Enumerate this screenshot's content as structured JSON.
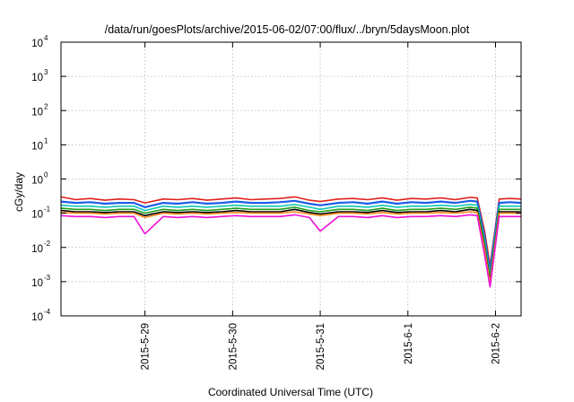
{
  "chart_data": {
    "type": "line",
    "title": "/data/run/goesPlots/archive/2015-06-02/07:00/flux/../bryn/5daysMoon.plot",
    "xlabel": "Coordinated Universal Time (UTC)",
    "ylabel": "cGy/day",
    "yscale": "log",
    "ylim": [
      0.0001,
      10000
    ],
    "y_ticks": [
      {
        "base": "10",
        "exp": "-4",
        "value": 0.0001
      },
      {
        "base": "10",
        "exp": "-3",
        "value": 0.001
      },
      {
        "base": "10",
        "exp": "-2",
        "value": 0.01
      },
      {
        "base": "10",
        "exp": "-1",
        "value": 0.1
      },
      {
        "base": "10",
        "exp": "0",
        "value": 1
      },
      {
        "base": "10",
        "exp": "1",
        "value": 10
      },
      {
        "base": "10",
        "exp": "2",
        "value": 100
      },
      {
        "base": "10",
        "exp": "3",
        "value": 1000
      },
      {
        "base": "10",
        "exp": "4",
        "value": 10000
      }
    ],
    "xlim": [
      "2015-05-28T01:00",
      "2015-06-02T07:00"
    ],
    "x_ticks": [
      {
        "label": "2015-5-29",
        "value": "2015-05-29T00:00"
      },
      {
        "label": "2015-5-30",
        "value": "2015-05-30T00:00"
      },
      {
        "label": "2015-5-31",
        "value": "2015-05-31T00:00"
      },
      {
        "label": "2015-6-1",
        "value": "2015-06-01T00:00"
      },
      {
        "label": "2015-6-2",
        "value": "2015-06-02T00:00"
      }
    ],
    "grid": true,
    "legend": "none",
    "x": [
      "2015-05-28T01:00",
      "2015-05-28T05:00",
      "2015-05-28T09:00",
      "2015-05-28T13:00",
      "2015-05-28T17:00",
      "2015-05-28T21:00",
      "2015-05-29T00:00",
      "2015-05-29T05:00",
      "2015-05-29T09:00",
      "2015-05-29T13:00",
      "2015-05-29T17:00",
      "2015-05-29T21:00",
      "2015-05-30T01:00",
      "2015-05-30T05:00",
      "2015-05-30T09:00",
      "2015-05-30T13:00",
      "2015-05-30T17:00",
      "2015-05-30T21:00",
      "2015-05-31T00:00",
      "2015-05-31T05:00",
      "2015-05-31T09:00",
      "2015-05-31T13:00",
      "2015-05-31T17:00",
      "2015-05-31T21:00",
      "2015-06-01T01:00",
      "2015-06-01T05:00",
      "2015-06-01T09:00",
      "2015-06-01T13:00",
      "2015-06-01T17:00",
      "2015-06-01T19:00",
      "2015-06-01T21:00",
      "2015-06-01T22:30",
      "2015-06-02T01:00",
      "2015-06-02T04:00",
      "2015-06-02T07:00"
    ],
    "series": [
      {
        "color": "#e0201c",
        "values": [
          0.3,
          0.25,
          0.27,
          0.24,
          0.26,
          0.25,
          0.2,
          0.26,
          0.25,
          0.27,
          0.24,
          0.26,
          0.28,
          0.25,
          0.26,
          0.27,
          0.3,
          0.24,
          0.22,
          0.26,
          0.27,
          0.25,
          0.28,
          0.24,
          0.27,
          0.26,
          0.28,
          0.25,
          0.29,
          0.28,
          0.03,
          0.003,
          0.26,
          0.27,
          0.26
        ]
      },
      {
        "color": "#1e5de8",
        "values": [
          0.22,
          0.2,
          0.21,
          0.19,
          0.2,
          0.2,
          0.15,
          0.2,
          0.19,
          0.21,
          0.19,
          0.2,
          0.22,
          0.2,
          0.2,
          0.21,
          0.23,
          0.19,
          0.17,
          0.2,
          0.21,
          0.19,
          0.22,
          0.19,
          0.21,
          0.2,
          0.22,
          0.2,
          0.23,
          0.22,
          0.02,
          0.002,
          0.2,
          0.21,
          0.2
        ]
      },
      {
        "color": "#10c8b0",
        "values": [
          0.17,
          0.16,
          0.16,
          0.15,
          0.16,
          0.16,
          0.12,
          0.16,
          0.15,
          0.16,
          0.15,
          0.16,
          0.17,
          0.16,
          0.16,
          0.16,
          0.18,
          0.15,
          0.13,
          0.16,
          0.16,
          0.15,
          0.17,
          0.15,
          0.16,
          0.16,
          0.17,
          0.16,
          0.18,
          0.17,
          0.015,
          0.0015,
          0.16,
          0.16,
          0.16
        ]
      },
      {
        "color": "#20a020",
        "values": [
          0.14,
          0.13,
          0.13,
          0.12,
          0.13,
          0.13,
          0.1,
          0.13,
          0.12,
          0.13,
          0.12,
          0.13,
          0.14,
          0.13,
          0.13,
          0.13,
          0.15,
          0.12,
          0.11,
          0.13,
          0.13,
          0.12,
          0.14,
          0.12,
          0.13,
          0.13,
          0.14,
          0.13,
          0.15,
          0.14,
          0.012,
          0.0012,
          0.13,
          0.13,
          0.13
        ]
      },
      {
        "color": "#000000",
        "values": [
          0.12,
          0.11,
          0.11,
          0.105,
          0.11,
          0.11,
          0.085,
          0.11,
          0.105,
          0.11,
          0.105,
          0.11,
          0.12,
          0.11,
          0.11,
          0.11,
          0.13,
          0.105,
          0.095,
          0.11,
          0.11,
          0.105,
          0.12,
          0.105,
          0.11,
          0.11,
          0.12,
          0.11,
          0.13,
          0.12,
          0.01,
          0.001,
          0.11,
          0.11,
          0.11
        ]
      },
      {
        "color": "#ff8a1c",
        "values": [
          0.105,
          0.1,
          0.1,
          0.095,
          0.1,
          0.1,
          0.075,
          0.1,
          0.095,
          0.1,
          0.095,
          0.1,
          0.105,
          0.1,
          0.1,
          0.1,
          0.11,
          0.095,
          0.085,
          0.1,
          0.1,
          0.095,
          0.105,
          0.095,
          0.1,
          0.1,
          0.105,
          0.1,
          0.11,
          0.105,
          0.009,
          0.0009,
          0.1,
          0.1,
          0.1
        ]
      },
      {
        "color": "#ee10d8",
        "values": [
          0.085,
          0.08,
          0.08,
          0.075,
          0.08,
          0.08,
          0.025,
          0.08,
          0.075,
          0.08,
          0.075,
          0.08,
          0.085,
          0.08,
          0.08,
          0.08,
          0.09,
          0.075,
          0.03,
          0.08,
          0.08,
          0.075,
          0.085,
          0.075,
          0.08,
          0.08,
          0.085,
          0.08,
          0.09,
          0.085,
          0.006,
          0.0007,
          0.08,
          0.08,
          0.08
        ]
      }
    ]
  }
}
